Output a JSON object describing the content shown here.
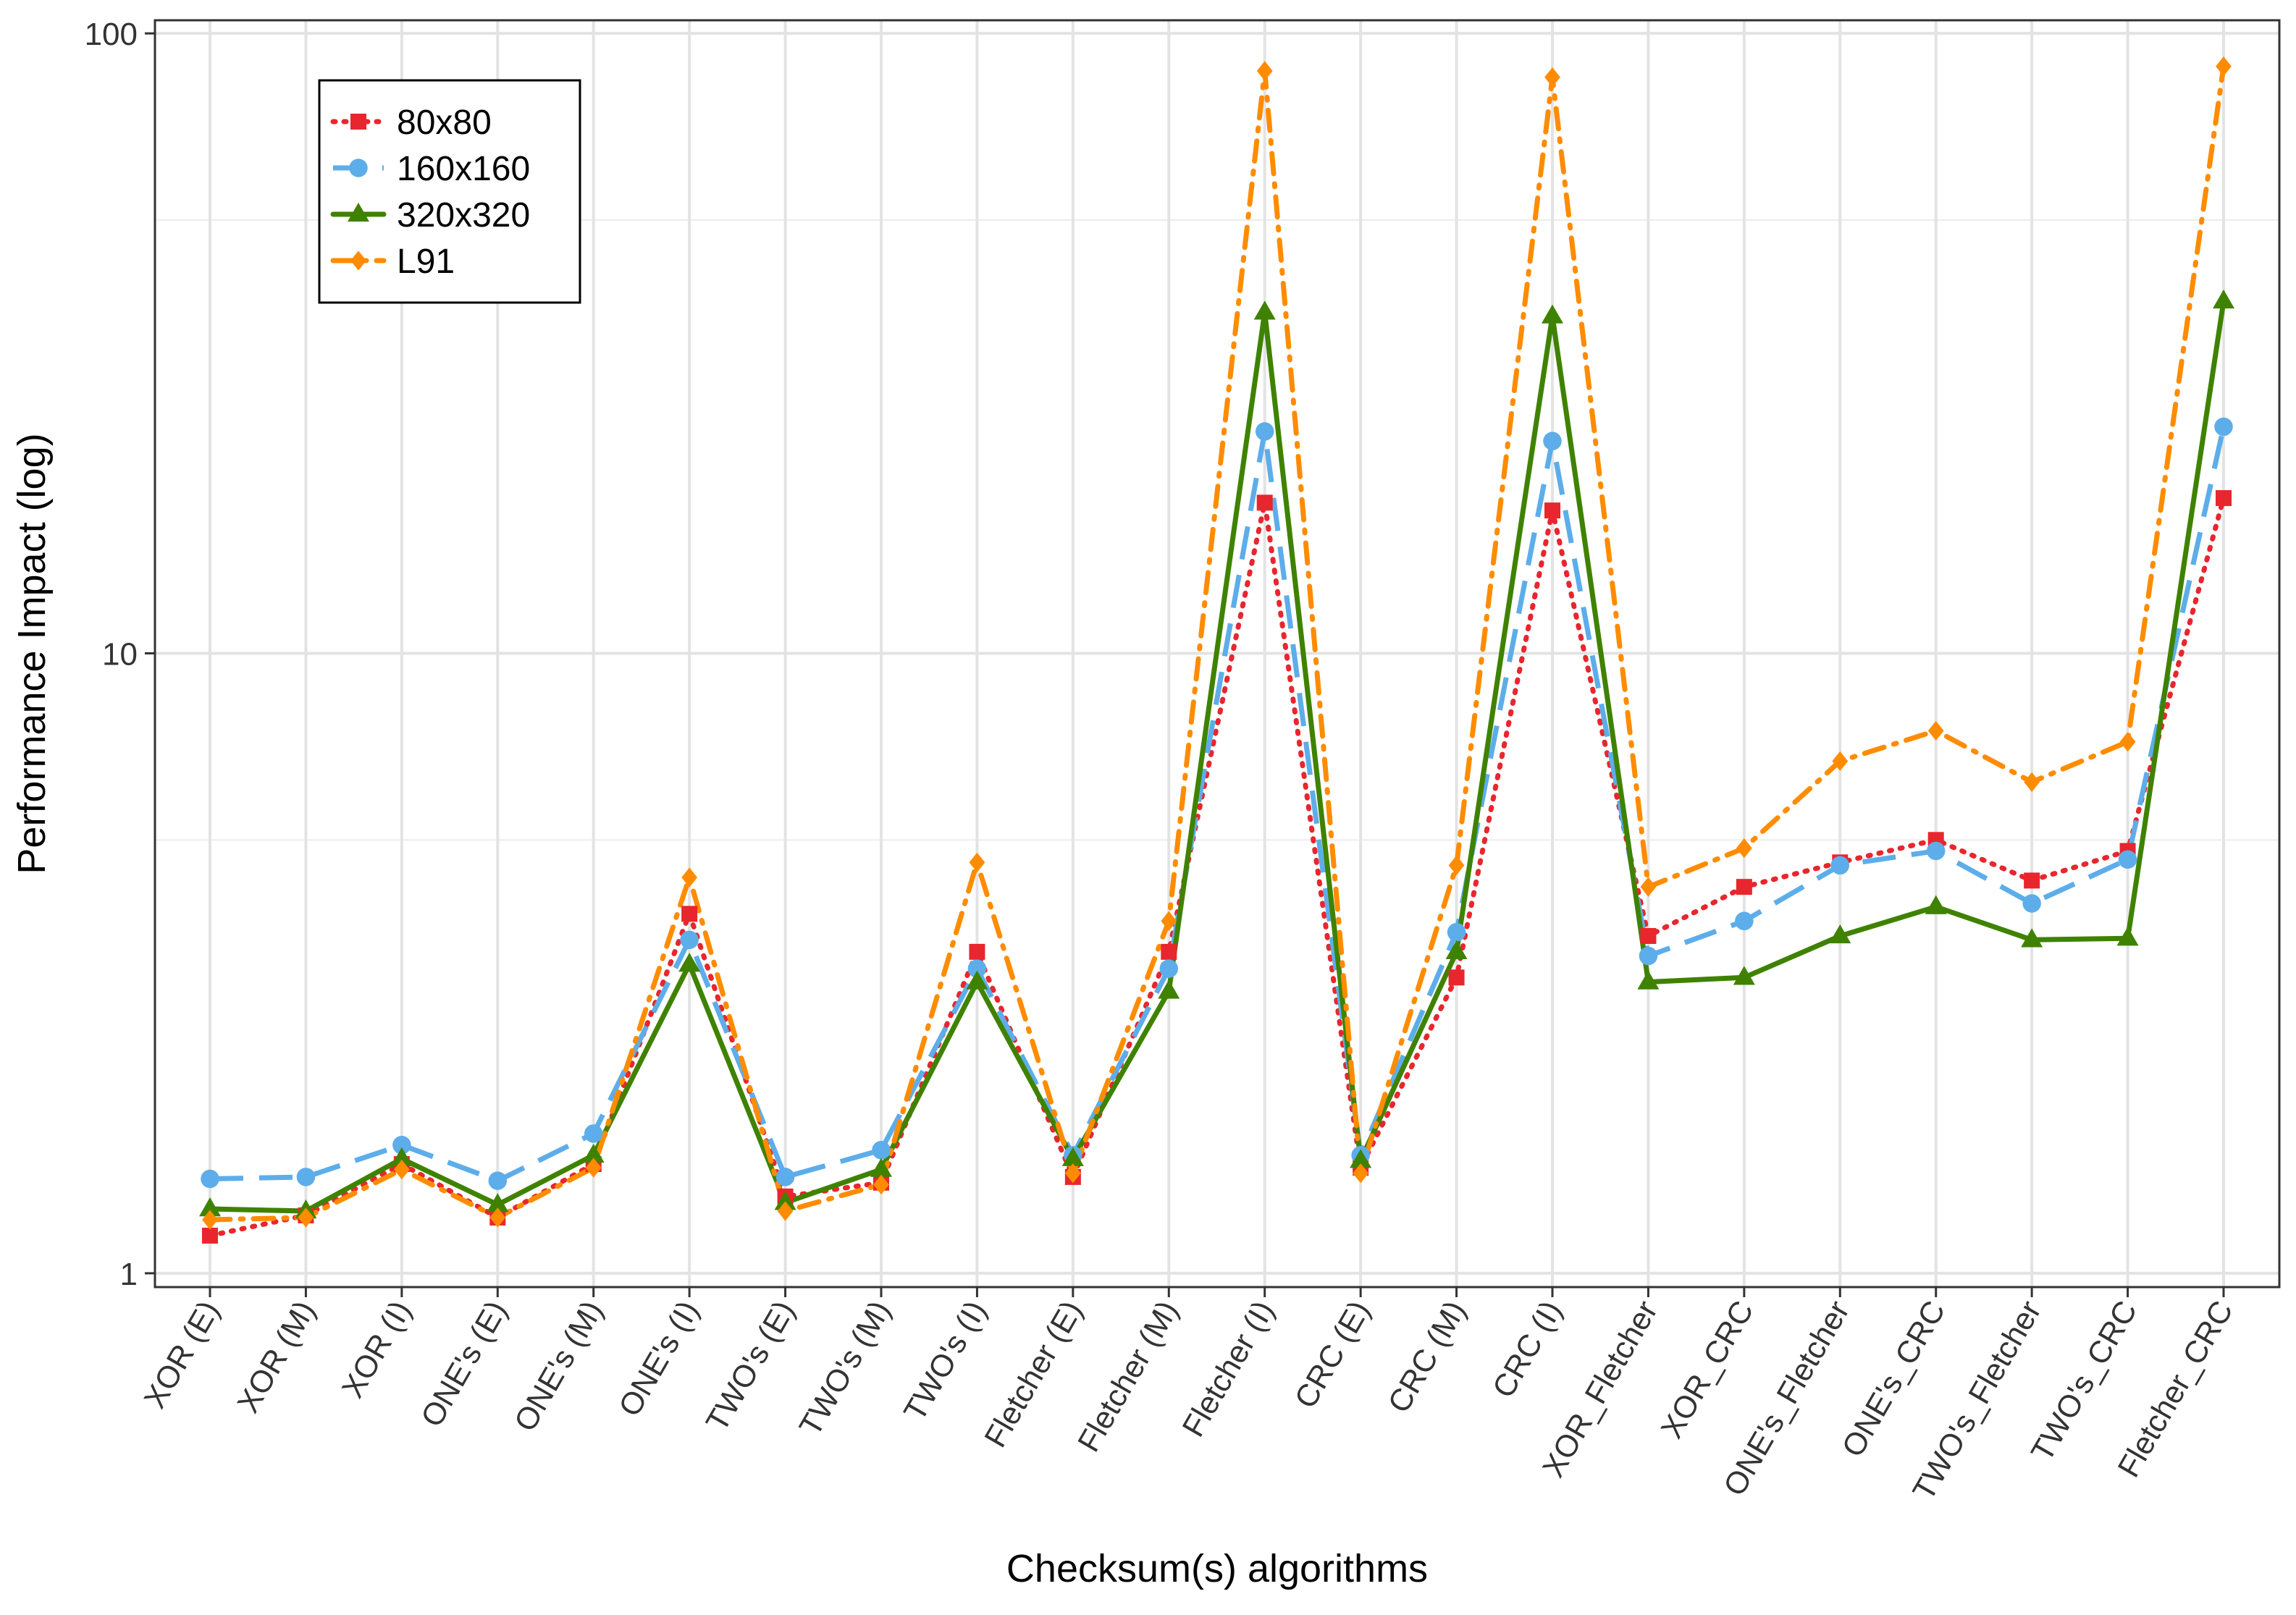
{
  "chart_data": {
    "type": "line",
    "xlabel": "Checksum(s) algorithms",
    "ylabel": "Performance Impact (log)",
    "yscale": "log10",
    "ylim": [
      0.95,
      105
    ],
    "yticks": [
      1,
      10,
      100
    ],
    "ytick_labels": [
      "1",
      "10",
      "100"
    ],
    "grid": true,
    "legend_position": "top-left",
    "categories": [
      "XOR (E)",
      "XOR (M)",
      "XOR (I)",
      "ONE's (E)",
      "ONE's (M)",
      "ONE's (I)",
      "TWO's (E)",
      "TWO's (M)",
      "TWO's (I)",
      "Fletcher (E)",
      "Fletcher (M)",
      "Fletcher (I)",
      "CRC (E)",
      "CRC (M)",
      "CRC (I)",
      "XOR_Fletcher",
      "XOR_CRC",
      "ONE's_Fletcher",
      "ONE's_CRC",
      "TWO's_Fletcher",
      "TWO's_CRC",
      "Fletcher_CRC"
    ],
    "series": [
      {
        "name": "80x80",
        "color": "#E8262E",
        "dash": "dotted",
        "marker": "square",
        "values": [
          1.15,
          1.24,
          1.5,
          1.23,
          1.5,
          3.8,
          1.33,
          1.4,
          3.3,
          1.43,
          3.3,
          17.5,
          1.48,
          3.0,
          17.0,
          3.5,
          4.2,
          4.6,
          5.0,
          4.3,
          4.8,
          17.8
        ]
      },
      {
        "name": "160x160",
        "color": "#5DADEA",
        "dash": "dashed",
        "marker": "circle",
        "values": [
          1.42,
          1.43,
          1.61,
          1.41,
          1.68,
          3.45,
          1.43,
          1.58,
          3.1,
          1.55,
          3.1,
          22.8,
          1.55,
          3.55,
          22.0,
          3.25,
          3.7,
          4.55,
          4.8,
          3.95,
          4.65,
          23.2
        ]
      },
      {
        "name": "320x320",
        "color": "#3F8200",
        "dash": "solid",
        "marker": "triangle",
        "values": [
          1.27,
          1.26,
          1.53,
          1.29,
          1.55,
          3.15,
          1.3,
          1.47,
          2.95,
          1.53,
          2.85,
          35.5,
          1.52,
          3.3,
          35.0,
          2.95,
          3.0,
          3.5,
          3.9,
          3.45,
          3.47,
          37.0
        ]
      },
      {
        "name": "L91",
        "color": "#FF8C00",
        "dash": "dashdot",
        "marker": "diamond",
        "values": [
          1.22,
          1.23,
          1.47,
          1.23,
          1.48,
          4.35,
          1.26,
          1.39,
          4.6,
          1.45,
          3.7,
          87.0,
          1.45,
          4.55,
          85.0,
          4.2,
          4.85,
          6.7,
          7.5,
          6.2,
          7.2,
          88.5
        ]
      }
    ]
  }
}
